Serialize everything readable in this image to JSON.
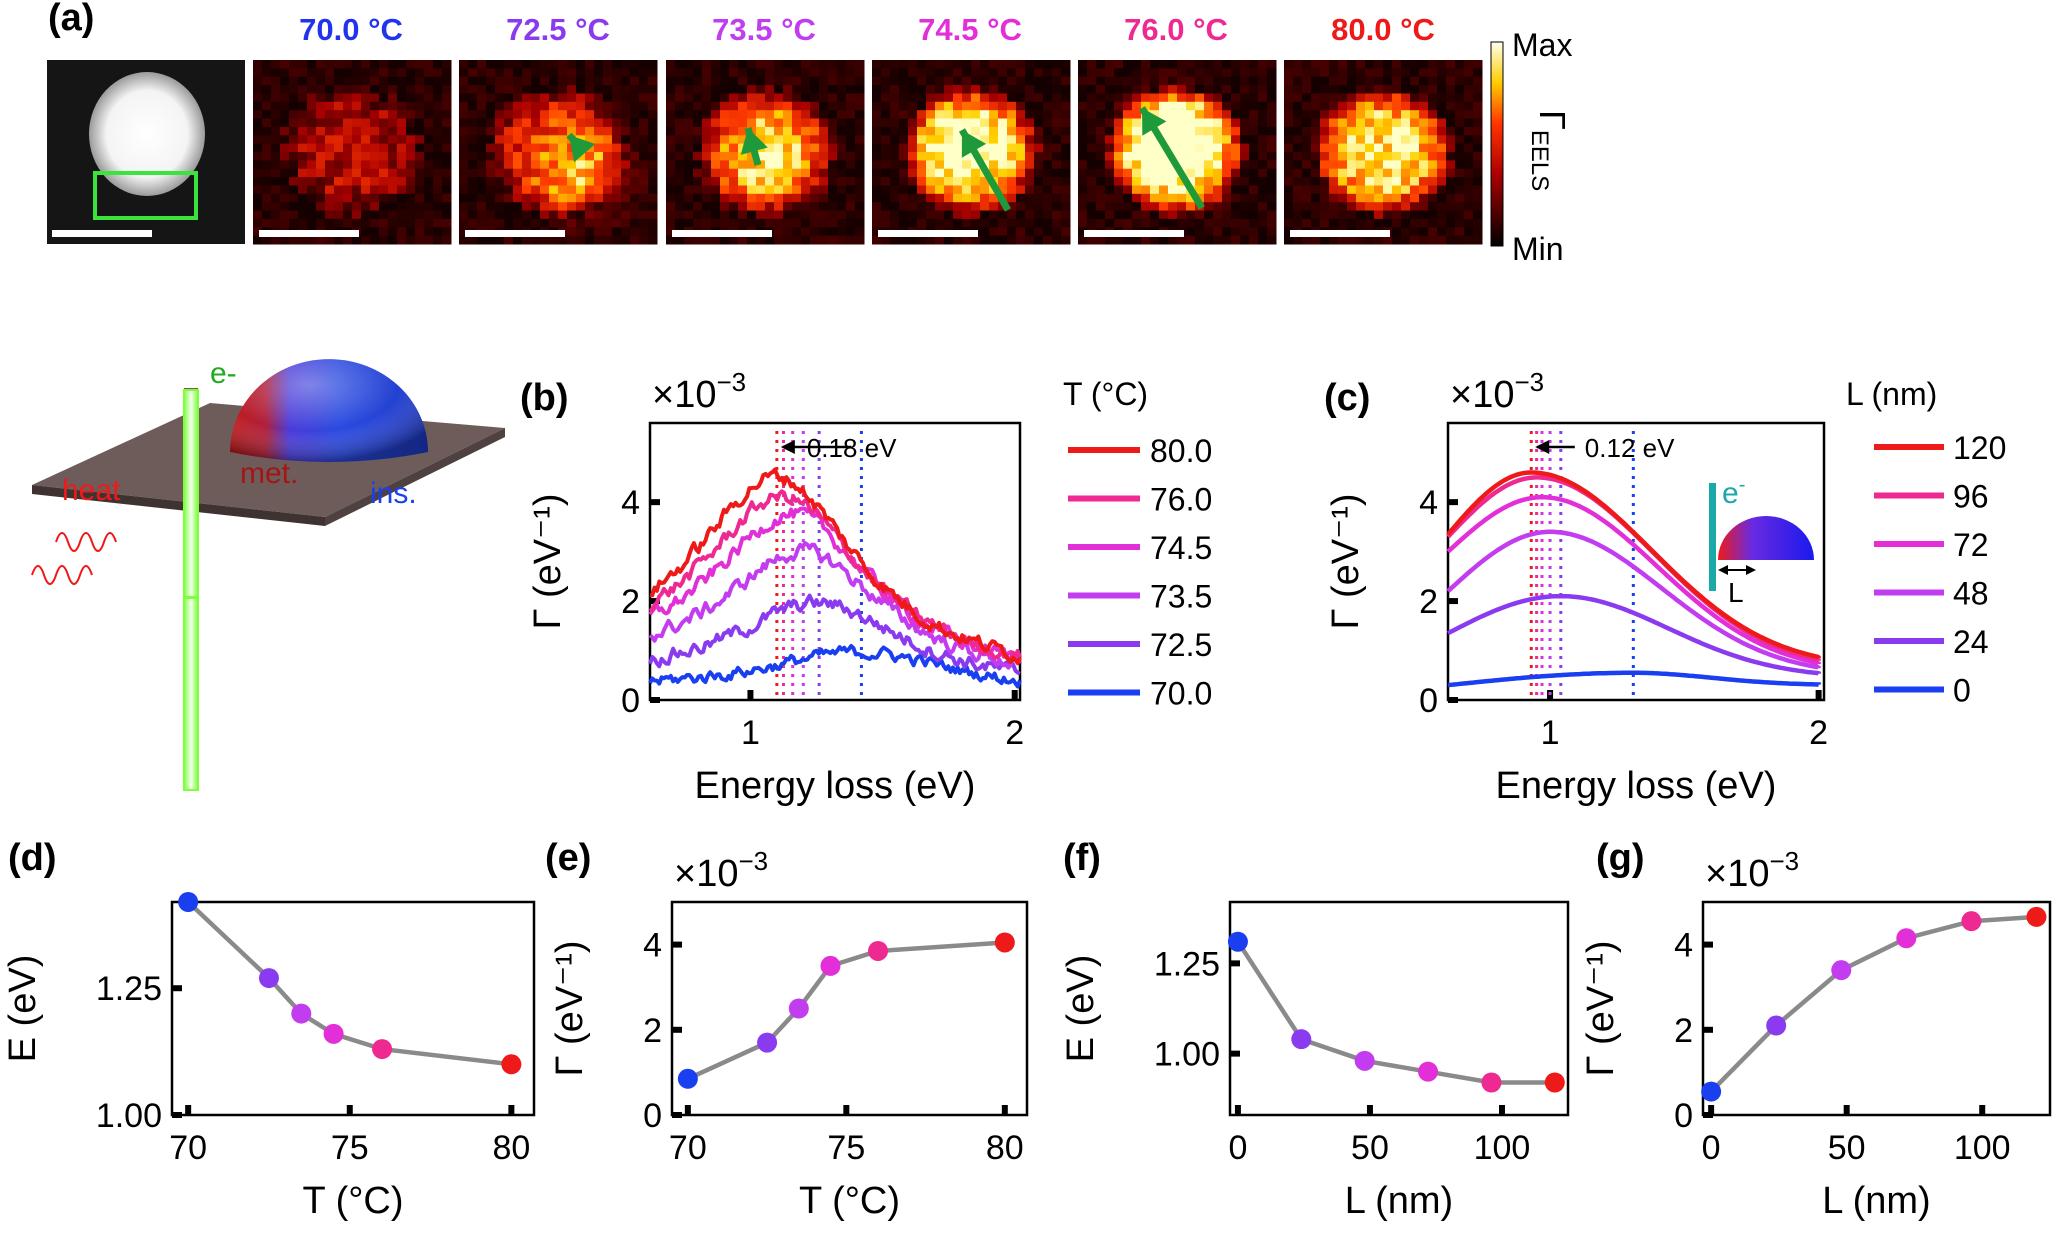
{
  "panel_labels": {
    "a": "(a)",
    "b": "(b)",
    "c": "(c)",
    "d": "(d)",
    "e": "(e)",
    "f": "(f)",
    "g": "(g)"
  },
  "panel_a": {
    "temps": [
      {
        "label": "70.0 °C",
        "color": "#2233ee"
      },
      {
        "label": "72.5 °C",
        "color": "#8a3bf0"
      },
      {
        "label": "73.5 °C",
        "color": "#c23cf0"
      },
      {
        "label": "74.5 °C",
        "color": "#e22fd8"
      },
      {
        "label": "76.0 °C",
        "color": "#ee2a92"
      },
      {
        "label": "80.0 °C",
        "color": "#ee1a1a"
      }
    ],
    "colorbar_max": "Max",
    "colorbar_min": "Min",
    "colorbar_label": "Γ",
    "colorbar_label_sub": "EELS"
  },
  "schematic": {
    "electron": "e-",
    "heat": "heat",
    "met": "met.",
    "ins": "ins."
  },
  "colors": {
    "red": "#ee1a1a",
    "blue": "#1a3ff0",
    "green": "#22cc22",
    "gray": "#8a8a8a"
  },
  "chart_data": [
    {
      "id": "b",
      "type": "line",
      "title": "",
      "xlabel": "Energy loss (eV)",
      "ylabel": "Γ (eV⁻¹)",
      "xlim": [
        0.62,
        2.02
      ],
      "ylim": [
        0,
        5.6
      ],
      "xticks": [
        1,
        2
      ],
      "yticks": [
        0,
        2,
        4
      ],
      "multiplier": "×10",
      "multiplier_exp": "−3",
      "legend_title": "T (°C)",
      "annotation": "0.18 eV",
      "peak_lines_x": [
        1.1,
        1.125,
        1.16,
        1.2,
        1.26,
        1.42
      ],
      "series": [
        {
          "name": "80.0",
          "color": "#ee1a1a",
          "peak_x": 1.1,
          "amplitude": 4.0,
          "baseline": 1.1,
          "width": 0.38,
          "noise": 0.3
        },
        {
          "name": "76.0",
          "color": "#ee2a92",
          "peak_x": 1.125,
          "amplitude": 3.6,
          "baseline": 1.1,
          "width": 0.38,
          "noise": 0.3
        },
        {
          "name": "74.5",
          "color": "#e22fd8",
          "peak_x": 1.16,
          "amplitude": 3.3,
          "baseline": 1.0,
          "width": 0.38,
          "noise": 0.3
        },
        {
          "name": "73.5",
          "color": "#c23cf0",
          "peak_x": 1.2,
          "amplitude": 2.6,
          "baseline": 0.9,
          "width": 0.38,
          "noise": 0.3
        },
        {
          "name": "72.5",
          "color": "#8a3bf0",
          "peak_x": 1.26,
          "amplitude": 1.7,
          "baseline": 0.6,
          "width": 0.4,
          "noise": 0.3
        },
        {
          "name": "70.0",
          "color": "#1a3ff0",
          "peak_x": 1.42,
          "amplitude": 0.85,
          "baseline": 0.3,
          "width": 0.45,
          "noise": 0.25
        }
      ]
    },
    {
      "id": "c",
      "type": "line",
      "title": "",
      "xlabel": "Energy loss (eV)",
      "ylabel": "Γ (eV⁻¹)",
      "xlim": [
        0.62,
        2.02
      ],
      "ylim": [
        0,
        5.6
      ],
      "xticks": [
        1,
        2
      ],
      "yticks": [
        0,
        2,
        4
      ],
      "multiplier": "×10",
      "multiplier_exp": "−3",
      "legend_title": "L (nm)",
      "annotation": "0.12 eV",
      "inset_electron": "e",
      "inset_electron_sup": "-",
      "inset_L": "L",
      "peak_lines_x": [
        0.93,
        0.95,
        0.97,
        1.0,
        1.04,
        1.31
      ],
      "series": [
        {
          "name": "120",
          "color": "#ee1a1a",
          "peak_x": 0.93,
          "peak": 4.6,
          "end": 0.65,
          "start": 3.35
        },
        {
          "name": "96",
          "color": "#ee2a92",
          "peak_x": 0.95,
          "peak": 4.5,
          "end": 0.6,
          "start": 3.3
        },
        {
          "name": "72",
          "color": "#e22fd8",
          "peak_x": 0.97,
          "peak": 4.1,
          "end": 0.55,
          "start": 3.0
        },
        {
          "name": "48",
          "color": "#c23cf0",
          "peak_x": 1.0,
          "peak": 3.4,
          "end": 0.5,
          "start": 2.2
        },
        {
          "name": "24",
          "color": "#8a3bf0",
          "peak_x": 1.04,
          "peak": 2.1,
          "end": 0.45,
          "start": 1.35
        },
        {
          "name": "0",
          "color": "#1a3ff0",
          "peak_x": 1.31,
          "peak": 0.55,
          "end": 0.3,
          "start": 0.3
        }
      ]
    },
    {
      "id": "d",
      "type": "scatter",
      "xlabel": "T (°C)",
      "ylabel": "E (eV)",
      "xlim": [
        69.5,
        80.7
      ],
      "ylim": [
        1.0,
        1.42
      ],
      "xticks": [
        70,
        75,
        80
      ],
      "yticks": [
        1.0,
        1.25
      ],
      "ytick_labels": [
        "1.00",
        "1.25"
      ],
      "x": [
        70.0,
        72.5,
        73.5,
        74.5,
        76.0,
        80.0
      ],
      "y": [
        1.42,
        1.27,
        1.2,
        1.16,
        1.13,
        1.1
      ],
      "colors": [
        "#1a3ff0",
        "#8a3bf0",
        "#c23cf0",
        "#e22fd8",
        "#ee2a92",
        "#ee1a1a"
      ]
    },
    {
      "id": "e",
      "type": "scatter",
      "xlabel": "T (°C)",
      "ylabel": "Γ (eV⁻¹)",
      "xlim": [
        69.5,
        80.7
      ],
      "ylim": [
        0,
        5.0
      ],
      "xticks": [
        70,
        75,
        80
      ],
      "yticks": [
        0,
        2,
        4
      ],
      "ytick_labels": [
        "0",
        "2",
        "4"
      ],
      "multiplier": "×10",
      "multiplier_exp": "−3",
      "x": [
        70.0,
        72.5,
        73.5,
        74.5,
        76.0,
        80.0
      ],
      "y": [
        0.85,
        1.7,
        2.5,
        3.5,
        3.85,
        4.05
      ],
      "colors": [
        "#1a3ff0",
        "#8a3bf0",
        "#c23cf0",
        "#e22fd8",
        "#ee2a92",
        "#ee1a1a"
      ]
    },
    {
      "id": "f",
      "type": "scatter",
      "xlabel": "L (nm)",
      "ylabel": "E (eV)",
      "xlim": [
        -3,
        125
      ],
      "ylim": [
        0.83,
        1.42
      ],
      "xticks": [
        0,
        50,
        100
      ],
      "yticks": [
        1.0,
        1.25
      ],
      "ytick_labels": [
        "1.00",
        "1.25"
      ],
      "x": [
        0,
        24,
        48,
        72,
        96,
        120
      ],
      "y": [
        1.31,
        1.04,
        0.98,
        0.95,
        0.92,
        0.92
      ],
      "colors": [
        "#1a3ff0",
        "#8a3bf0",
        "#c23cf0",
        "#e22fd8",
        "#ee2a92",
        "#ee1a1a"
      ]
    },
    {
      "id": "g",
      "type": "scatter",
      "xlabel": "L (nm)",
      "ylabel": "Γ (eV⁻¹)",
      "xlim": [
        -3,
        125
      ],
      "ylim": [
        0,
        5.0
      ],
      "xticks": [
        0,
        50,
        100
      ],
      "yticks": [
        0,
        2,
        4
      ],
      "ytick_labels": [
        "0",
        "2",
        "4"
      ],
      "multiplier": "×10",
      "multiplier_exp": "−3",
      "x": [
        0,
        24,
        48,
        72,
        96,
        120
      ],
      "y": [
        0.55,
        2.1,
        3.4,
        4.15,
        4.55,
        4.65
      ],
      "colors": [
        "#1a3ff0",
        "#8a3bf0",
        "#c23cf0",
        "#e22fd8",
        "#ee2a92",
        "#ee1a1a"
      ]
    }
  ]
}
